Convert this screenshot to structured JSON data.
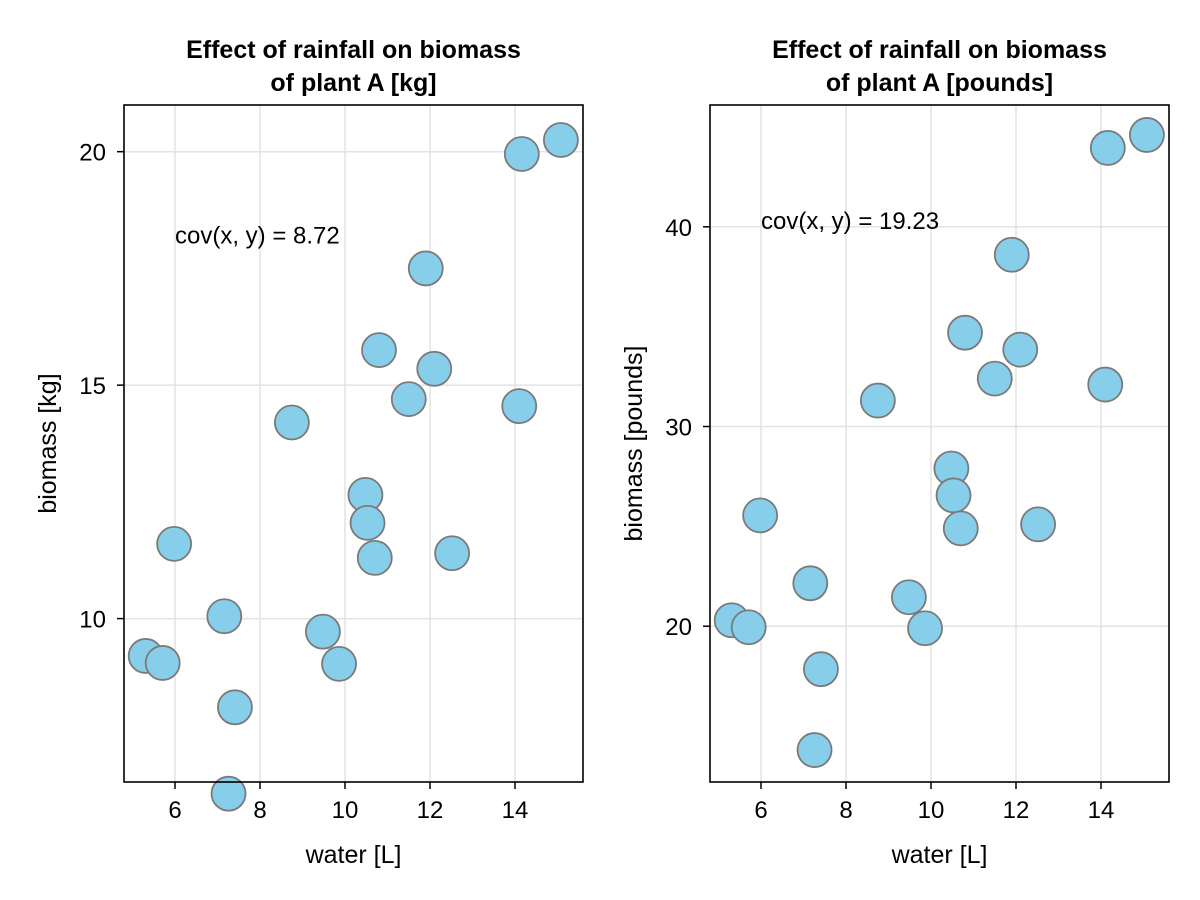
{
  "chart_data": [
    {
      "type": "scatter",
      "title": [
        "Effect of rainfall on biomass",
        "of plant A [kg]"
      ],
      "xlabel": "water [L]",
      "ylabel": "biomass [kg]",
      "xlim": [
        4.8,
        15.6
      ],
      "ylim": [
        6.5,
        21.0
      ],
      "xticks": [
        6,
        8,
        10,
        12,
        14
      ],
      "yticks": [
        10,
        15,
        20
      ],
      "grid": true,
      "marker_color": "#87ceeb",
      "marker_edge": "#7a7a7a",
      "annotation": {
        "text": "cov(x, y) = 8.72",
        "x": 6.0,
        "y": 18.2
      },
      "x": [
        5.31,
        5.71,
        5.98,
        7.16,
        7.26,
        7.41,
        8.75,
        9.48,
        9.86,
        10.48,
        10.53,
        10.7,
        10.8,
        11.5,
        11.9,
        12.1,
        12.52,
        14.1,
        14.16,
        15.08
      ],
      "y": [
        9.2,
        9.05,
        11.6,
        10.05,
        6.25,
        8.1,
        14.2,
        9.72,
        9.03,
        12.65,
        12.05,
        11.3,
        15.75,
        14.7,
        17.5,
        15.35,
        11.4,
        14.55,
        19.95,
        20.25
      ]
    },
    {
      "type": "scatter",
      "title": [
        "Effect of rainfall on biomass",
        "of plant A [pounds]"
      ],
      "xlabel": "water [L]",
      "ylabel": "biomass [pounds]",
      "xlim": [
        4.8,
        15.6
      ],
      "ylim": [
        12.2,
        46.1
      ],
      "xticks": [
        6,
        8,
        10,
        12,
        14
      ],
      "yticks": [
        20,
        30,
        40
      ],
      "grid": true,
      "marker_color": "#87ceeb",
      "marker_edge": "#7a7a7a",
      "annotation": {
        "text": "cov(x, y) = 19.23",
        "x": 6.0,
        "y": 40.3
      },
      "x": [
        5.31,
        5.71,
        5.98,
        7.16,
        7.26,
        7.41,
        8.75,
        9.48,
        9.86,
        10.48,
        10.53,
        10.7,
        10.8,
        11.5,
        11.9,
        12.1,
        12.52,
        14.1,
        14.16,
        15.08
      ],
      "y": [
        20.3,
        19.95,
        25.55,
        22.15,
        13.8,
        17.85,
        31.3,
        21.45,
        19.9,
        27.9,
        26.55,
        24.9,
        34.7,
        32.4,
        38.6,
        33.85,
        25.1,
        32.1,
        43.95,
        44.6
      ]
    }
  ]
}
